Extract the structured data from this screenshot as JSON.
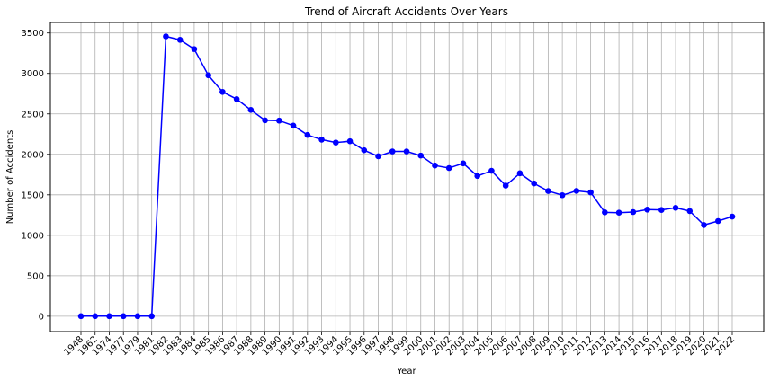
{
  "chart_data": {
    "type": "line",
    "title": "Trend of Aircraft Accidents Over Years",
    "xlabel": "Year",
    "ylabel": "Number of Accidents",
    "categories": [
      "1948",
      "1962",
      "1974",
      "1977",
      "1979",
      "1981",
      "1982",
      "1983",
      "1984",
      "1985",
      "1986",
      "1987",
      "1988",
      "1989",
      "1990",
      "1991",
      "1992",
      "1993",
      "1994",
      "1995",
      "1996",
      "1997",
      "1998",
      "1999",
      "2000",
      "2001",
      "2002",
      "2003",
      "2004",
      "2005",
      "2006",
      "2007",
      "2008",
      "2009",
      "2010",
      "2011",
      "2012",
      "2013",
      "2014",
      "2015",
      "2016",
      "2017",
      "2018",
      "2019",
      "2020",
      "2021",
      "2022"
    ],
    "series": [
      {
        "values": [
          1,
          1,
          1,
          1,
          1,
          1,
          3458,
          3415,
          3301,
          2977,
          2772,
          2683,
          2549,
          2421,
          2417,
          2355,
          2240,
          2182,
          2146,
          2162,
          2051,
          1976,
          2036,
          2036,
          1985,
          1862,
          1831,
          1889,
          1733,
          1797,
          1614,
          1766,
          1641,
          1547,
          1495,
          1549,
          1530,
          1283,
          1279,
          1287,
          1317,
          1313,
          1339,
          1299,
          1127,
          1176,
          1231
        ],
        "color": "#0000ff"
      }
    ],
    "ylim": [
      -190,
      3630
    ],
    "yticks": [
      0,
      500,
      1000,
      1500,
      2000,
      2500,
      3000,
      3500
    ],
    "grid": true,
    "marker": "circle"
  }
}
